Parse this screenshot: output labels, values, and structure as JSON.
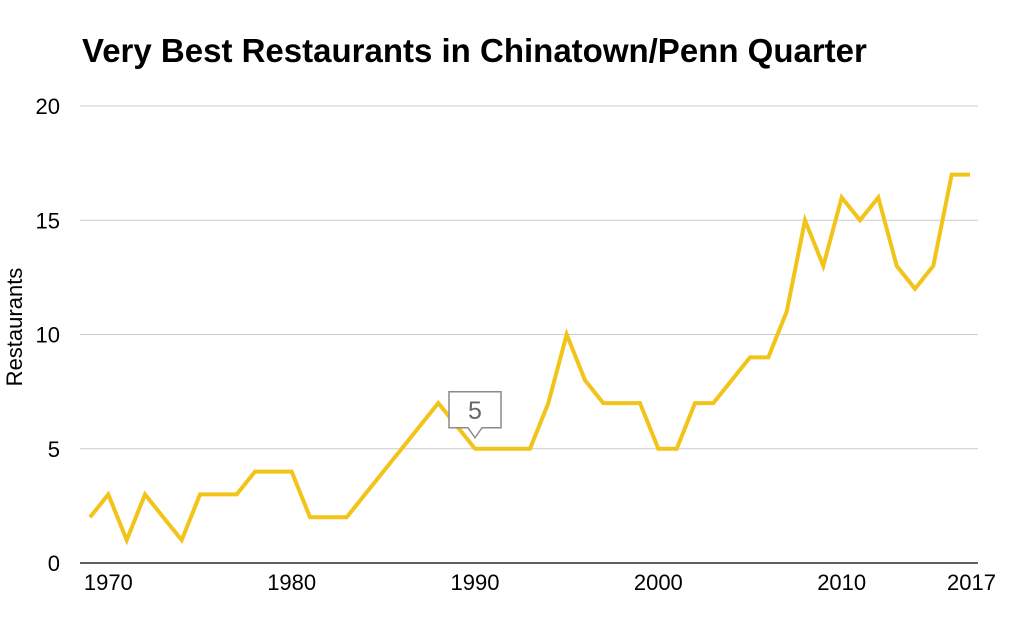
{
  "chart_data": {
    "type": "line",
    "title": "Very Best Restaurants in Chinatown/Penn Quarter",
    "xlabel": "",
    "ylabel": "Restaurants",
    "ylim": [
      0,
      20
    ],
    "xlim": [
      1969,
      2017
    ],
    "y_ticks": [
      "0",
      "5",
      "10",
      "15",
      "20"
    ],
    "x_ticks": [
      "1970",
      "1980",
      "1990",
      "2000",
      "2010",
      "2017"
    ],
    "grid": true,
    "line_color": "#f2c318",
    "series": [
      {
        "x": [
          1969,
          1970,
          1971,
          1972,
          1973,
          1974,
          1975,
          1976,
          1977,
          1978,
          1979,
          1980,
          1981,
          1982,
          1983,
          1984,
          1985,
          1986,
          1987,
          1988,
          1989,
          1990,
          1991,
          1992,
          1993,
          1994,
          1995,
          1996,
          1997,
          1998,
          1999,
          2000,
          2001,
          2002,
          2003,
          2004,
          2005,
          2006,
          2007,
          2008,
          2009,
          2010,
          2011,
          2012,
          2013,
          2014,
          2015,
          2016,
          2017
        ],
        "values": [
          2,
          3,
          1,
          3,
          2,
          1,
          3,
          3,
          3,
          4,
          4,
          4,
          2,
          2,
          2,
          3,
          4,
          5,
          6,
          7,
          6,
          5,
          5,
          5,
          5,
          7,
          10,
          8,
          7,
          7,
          7,
          5,
          5,
          7,
          7,
          8,
          9,
          9,
          11,
          15,
          13,
          16,
          15,
          16,
          13,
          12,
          13,
          17,
          17
        ]
      }
    ],
    "annotation": {
      "x": 1990,
      "y": 5,
      "text": "5"
    }
  }
}
